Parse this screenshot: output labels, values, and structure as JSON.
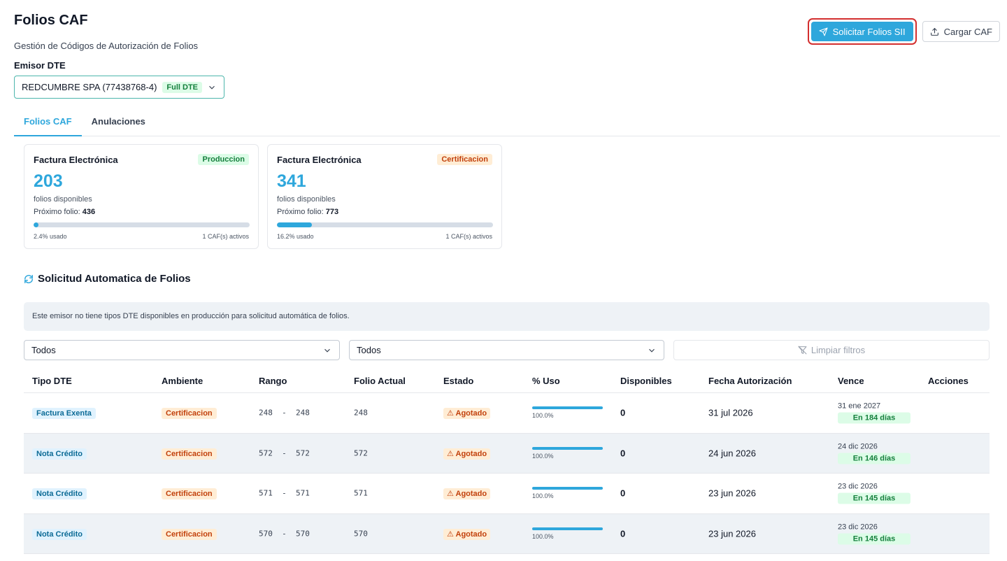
{
  "header": {
    "title": "Folios CAF",
    "subtitle": "Gestión de Códigos de Autorización de Folios",
    "solicitar_label": "Solicitar Folios SII",
    "cargar_label": "Cargar CAF"
  },
  "emisor": {
    "label": "Emisor DTE",
    "value": "REDCUMBRE SPA (77438768-4)",
    "badge": "Full DTE"
  },
  "tabs": [
    {
      "label": "Folios CAF",
      "active": true
    },
    {
      "label": "Anulaciones",
      "active": false
    }
  ],
  "cards": [
    {
      "title": "Factura Electrónica",
      "env": "Produccion",
      "available": "203",
      "available_label": "folios disponibles",
      "next_label": "Próximo folio:",
      "next": "436",
      "used_label": "2.4% usado",
      "used_fraction": 0.024,
      "cafs": "1 CAF(s) activos"
    },
    {
      "title": "Factura Electrónica",
      "env": "Certificacion",
      "available": "341",
      "available_label": "folios disponibles",
      "next_label": "Próximo folio:",
      "next": "773",
      "used_label": "16.2% usado",
      "used_fraction": 0.162,
      "cafs": "1 CAF(s) activos"
    }
  ],
  "auto": {
    "title": "Solicitud Automatica de Folios",
    "info": "Este emisor no tiene tipos DTE disponibles en producción para solicitud automática de folios."
  },
  "filters": {
    "tipo": "Todos",
    "ambiente": "Todos",
    "clear_label": "Limpiar filtros"
  },
  "table": {
    "headers": [
      "Tipo DTE",
      "Ambiente",
      "Rango",
      "Folio Actual",
      "Estado",
      "% Uso",
      "Disponibles",
      "Fecha Autorización",
      "Vence",
      "Acciones"
    ],
    "rows": [
      {
        "tipo": "Factura Exenta",
        "ambiente": "Certificacion",
        "rango_desde": "248",
        "rango_sep": "-",
        "rango_hasta": "248",
        "folio": "248",
        "estado": "⚠ Agotado",
        "uso": "100.0%",
        "disponibles": "0",
        "fecha": "31 jul 2026",
        "vence": "31 ene 2027",
        "dias": "En 184 días"
      },
      {
        "tipo": "Nota Crédito",
        "ambiente": "Certificacion",
        "rango_desde": "572",
        "rango_sep": "-",
        "rango_hasta": "572",
        "folio": "572",
        "estado": "⚠ Agotado",
        "uso": "100.0%",
        "disponibles": "0",
        "fecha": "24 jun 2026",
        "vence": "24 dic 2026",
        "dias": "En 146 días"
      },
      {
        "tipo": "Nota Crédito",
        "ambiente": "Certificacion",
        "rango_desde": "571",
        "rango_sep": "-",
        "rango_hasta": "571",
        "folio": "571",
        "estado": "⚠ Agotado",
        "uso": "100.0%",
        "disponibles": "0",
        "fecha": "23 jun 2026",
        "vence": "23 dic 2026",
        "dias": "En 145 días"
      },
      {
        "tipo": "Nota Crédito",
        "ambiente": "Certificacion",
        "rango_desde": "570",
        "rango_sep": "-",
        "rango_hasta": "570",
        "folio": "570",
        "estado": "⚠ Agotado",
        "uso": "100.0%",
        "disponibles": "0",
        "fecha": "23 jun 2026",
        "vence": "23 dic 2026",
        "dias": "En 145 días"
      }
    ]
  },
  "colors": {
    "accent": "#2ea7dc",
    "highlight": "#d32f2f"
  },
  "icons": {
    "solicitar": "send-icon",
    "cargar": "upload-icon",
    "section": "refresh-icon",
    "clear": "filter-off-icon",
    "select": "chevron-down-icon"
  }
}
